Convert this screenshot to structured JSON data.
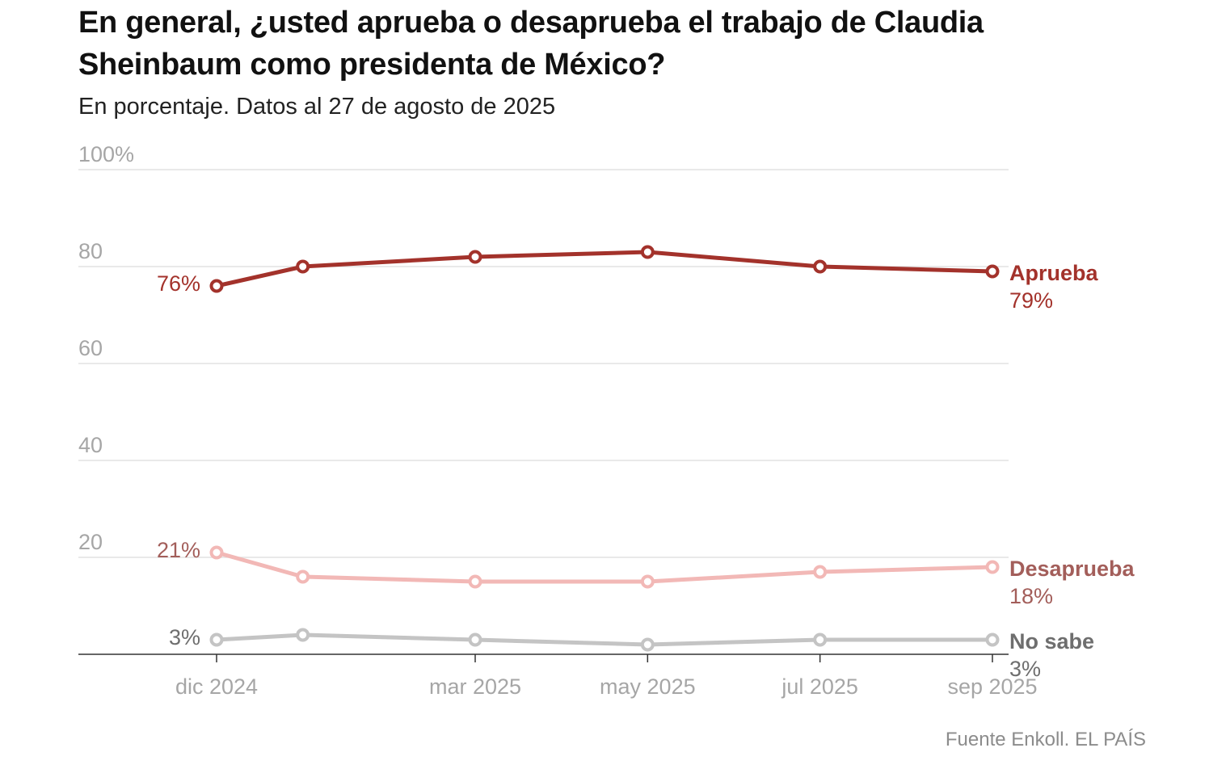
{
  "title": "En general, ¿usted aprueba o desaprueba el trabajo de Claudia Sheinbaum como presidenta de México?",
  "subtitle": "En porcentaje. Datos al 27 de agosto de 2025",
  "source": "Fuente Enkoll. EL PAÍS",
  "chart_data": {
    "type": "line",
    "x": [
      "2024-12",
      "2025-01",
      "2025-03",
      "2025-05",
      "2025-07",
      "2025-09"
    ],
    "x_tick_labels": [
      {
        "x": "2024-12",
        "label": "dic 2024"
      },
      {
        "x": "2025-03",
        "label": "mar 2025"
      },
      {
        "x": "2025-05",
        "label": "may 2025"
      },
      {
        "x": "2025-07",
        "label": "jul 2025"
      },
      {
        "x": "2025-09",
        "label": "sep 2025"
      }
    ],
    "y_ticks": [
      {
        "value": 20,
        "label": "20"
      },
      {
        "value": 40,
        "label": "40"
      },
      {
        "value": 60,
        "label": "60"
      },
      {
        "value": 80,
        "label": "80"
      },
      {
        "value": 100,
        "label": "100%"
      }
    ],
    "ylim": [
      0,
      100
    ],
    "grid": true,
    "series": [
      {
        "name": "Aprueba",
        "color": "#a3322b",
        "label_color": "#a3322b",
        "values": [
          76,
          80,
          82,
          83,
          80,
          79
        ],
        "start_label": "76%",
        "end_label": "79%"
      },
      {
        "name": "Desaprueba",
        "color": "#f2b8b6",
        "label_color": "#a35e5a",
        "values": [
          21,
          16,
          15,
          15,
          17,
          18
        ],
        "start_label": "21%",
        "end_label": "18%"
      },
      {
        "name": "No sabe",
        "color": "#c4c4c4",
        "label_color": "#6e6e6e",
        "values": [
          3,
          4,
          3,
          2,
          3,
          3
        ],
        "start_label": "3%",
        "end_label": "3%"
      }
    ]
  }
}
